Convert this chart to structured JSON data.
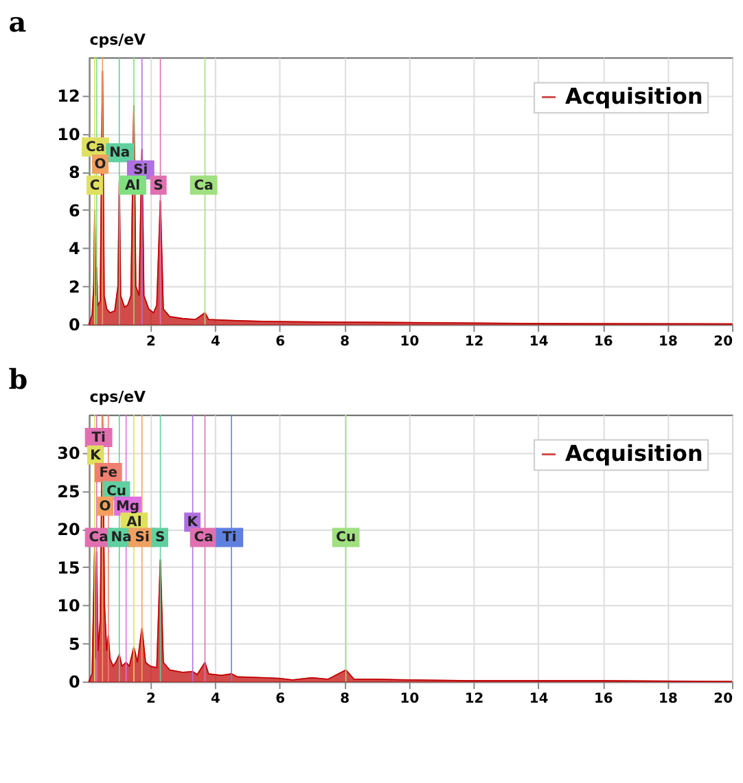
{
  "chart_data": [
    {
      "type": "area",
      "title": "a",
      "ylabel": "cps/eV",
      "xlim": [
        0.1,
        20
      ],
      "ylim": [
        0,
        14
      ],
      "xticks": [
        2,
        4,
        6,
        8,
        10,
        12,
        14,
        16,
        18,
        20
      ],
      "yticks": [
        0,
        2,
        4,
        6,
        8,
        10,
        12
      ],
      "grid": true,
      "legend": "top right",
      "series": [
        {
          "name": "Acquisition",
          "color": "#c00000",
          "x": [
            0.1,
            0.2,
            0.25,
            0.28,
            0.31,
            0.34,
            0.37,
            0.45,
            0.52,
            0.57,
            0.65,
            0.75,
            0.9,
            1.0,
            1.04,
            1.08,
            1.2,
            1.3,
            1.4,
            1.49,
            1.55,
            1.65,
            1.74,
            1.8,
            1.95,
            2.1,
            2.2,
            2.31,
            2.4,
            2.6,
            3.0,
            3.4,
            3.69,
            3.8,
            4.5,
            5.5,
            7,
            9,
            11,
            13,
            15,
            20
          ],
          "values": [
            0,
            0.5,
            2,
            6,
            1.5,
            3,
            1,
            1.2,
            13.3,
            1.5,
            0.8,
            0.6,
            0.7,
            2,
            7.5,
            1.5,
            0.9,
            1,
            1.5,
            11.5,
            2,
            1.5,
            9.2,
            1.5,
            0.8,
            0.6,
            1,
            6.5,
            0.8,
            0.4,
            0.3,
            0.25,
            0.6,
            0.25,
            0.2,
            0.15,
            0.12,
            0.1,
            0.08,
            0.05,
            0.03,
            0.02
          ]
        }
      ],
      "ref_lines": [
        {
          "axis": "x",
          "value": 0.28,
          "color": "#e0e060"
        },
        {
          "axis": "x",
          "value": 0.34,
          "color": "#80e080"
        },
        {
          "axis": "x",
          "value": 0.52,
          "color": "#f0a060"
        },
        {
          "axis": "x",
          "value": 1.04,
          "color": "#60d0a0"
        },
        {
          "axis": "x",
          "value": 1.49,
          "color": "#80e080"
        },
        {
          "axis": "x",
          "value": 1.74,
          "color": "#b070e0"
        },
        {
          "axis": "x",
          "value": 2.31,
          "color": "#e070b0"
        },
        {
          "axis": "x",
          "value": 3.69,
          "color": "#a0e080"
        }
      ],
      "annotations": [
        {
          "text": "Ca",
          "x": 0.3,
          "y": 9.3
        },
        {
          "text": "Na",
          "x": 1.05,
          "y": 9.0
        },
        {
          "text": "O",
          "x": 0.45,
          "y": 8.4
        },
        {
          "text": "Si",
          "x": 1.7,
          "y": 8.1
        },
        {
          "text": "C",
          "x": 0.28,
          "y": 7.3
        },
        {
          "text": "Al",
          "x": 1.45,
          "y": 7.3
        },
        {
          "text": "S",
          "x": 2.25,
          "y": 7.3
        },
        {
          "text": "Ca",
          "x": 3.65,
          "y": 7.3
        }
      ]
    },
    {
      "type": "area",
      "title": "b",
      "ylabel": "cps/eV",
      "xlim": [
        0.1,
        20
      ],
      "ylim": [
        0,
        35
      ],
      "xticks": [
        2,
        4,
        6,
        8,
        10,
        12,
        14,
        16,
        18,
        20
      ],
      "yticks": [
        0,
        5,
        10,
        15,
        20,
        25,
        30
      ],
      "grid": true,
      "legend": "top right",
      "series": [
        {
          "name": "Acquisition",
          "color": "#c00000",
          "x": [
            0.1,
            0.2,
            0.28,
            0.31,
            0.34,
            0.38,
            0.45,
            0.52,
            0.58,
            0.65,
            0.7,
            0.75,
            0.85,
            0.93,
            1.04,
            1.12,
            1.25,
            1.35,
            1.49,
            1.6,
            1.74,
            1.85,
            2.0,
            2.2,
            2.31,
            2.4,
            2.6,
            3.0,
            3.31,
            3.45,
            3.69,
            3.8,
            4.2,
            4.51,
            4.7,
            5.5,
            6.0,
            6.4,
            7,
            7.5,
            8.05,
            8.3,
            9,
            10,
            12,
            14,
            16,
            20
          ],
          "values": [
            0,
            1,
            18,
            3,
            17,
            4,
            8,
            35,
            10,
            4,
            6,
            3,
            2,
            2.5,
            3.5,
            2,
            2.5,
            2,
            4.5,
            2.5,
            7,
            2.5,
            2,
            1.8,
            16,
            2.5,
            1.5,
            1.2,
            1.3,
            0.9,
            2.5,
            1,
            0.8,
            1,
            0.6,
            0.5,
            0.4,
            0.2,
            0.5,
            0.3,
            1.5,
            0.3,
            0.3,
            0.2,
            0.1,
            0.1,
            0.1,
            0
          ]
        }
      ],
      "ref_lines": [
        {
          "axis": "x",
          "value": 0.28,
          "color": "#e0e060"
        },
        {
          "axis": "x",
          "value": 0.34,
          "color": "#e070b0"
        },
        {
          "axis": "x",
          "value": 0.52,
          "color": "#f0a060"
        },
        {
          "axis": "x",
          "value": 0.7,
          "color": "#f08070"
        },
        {
          "axis": "x",
          "value": 1.04,
          "color": "#60d0a0"
        },
        {
          "axis": "x",
          "value": 1.25,
          "color": "#e070e0"
        },
        {
          "axis": "x",
          "value": 1.49,
          "color": "#e0e060"
        },
        {
          "axis": "x",
          "value": 1.74,
          "color": "#f0a060"
        },
        {
          "axis": "x",
          "value": 2.31,
          "color": "#60d0a0"
        },
        {
          "axis": "x",
          "value": 3.31,
          "color": "#b070e0"
        },
        {
          "axis": "x",
          "value": 3.69,
          "color": "#e070b0"
        },
        {
          "axis": "x",
          "value": 4.51,
          "color": "#6080e0"
        },
        {
          "axis": "x",
          "value": 8.05,
          "color": "#a0e080"
        }
      ],
      "annotations": [
        {
          "text": "Ti",
          "x": 0.4,
          "y": 32
        },
        {
          "text": "K",
          "x": 0.3,
          "y": 29.7
        },
        {
          "text": "Fe",
          "x": 0.7,
          "y": 27.4
        },
        {
          "text": "Cu",
          "x": 0.95,
          "y": 25
        },
        {
          "text": "O",
          "x": 0.6,
          "y": 23
        },
        {
          "text": "Mg",
          "x": 1.3,
          "y": 23
        },
        {
          "text": "Al",
          "x": 1.5,
          "y": 20.9
        },
        {
          "text": "Ca",
          "x": 0.4,
          "y": 18.9
        },
        {
          "text": "Na",
          "x": 1.1,
          "y": 18.9
        },
        {
          "text": "Si",
          "x": 1.75,
          "y": 18.9
        },
        {
          "text": "S",
          "x": 2.3,
          "y": 18.9
        },
        {
          "text": "K",
          "x": 3.3,
          "y": 20.9
        },
        {
          "text": "Ca",
          "x": 3.65,
          "y": 18.9
        },
        {
          "text": "Ti",
          "x": 4.45,
          "y": 18.9
        },
        {
          "text": "Cu",
          "x": 8.05,
          "y": 18.9
        }
      ]
    }
  ]
}
